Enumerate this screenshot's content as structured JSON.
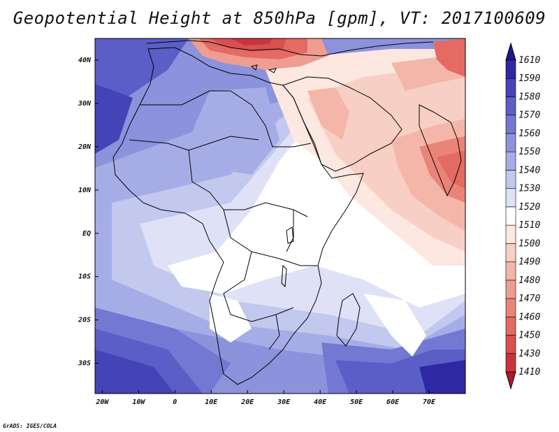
{
  "title": "Geopotential Height at 850hPa [gpm], VT: 2017100609",
  "credit": "GrADS: IGES/COLA",
  "axes": {
    "x_tick_labels": [
      "20W",
      "10W",
      "0",
      "10E",
      "20E",
      "30E",
      "40E",
      "50E",
      "60E",
      "70E"
    ],
    "x_tick_values": [
      -20,
      -10,
      0,
      10,
      20,
      30,
      40,
      50,
      60,
      70
    ],
    "y_tick_labels": [
      "40N",
      "30N",
      "20N",
      "10N",
      "EQ",
      "10S",
      "20S",
      "30S"
    ],
    "y_tick_values": [
      40,
      30,
      20,
      10,
      0,
      -10,
      -20,
      -30
    ],
    "lon_range": [
      -22,
      80
    ],
    "lat_range": [
      -37,
      45
    ]
  },
  "colorbar": {
    "levels": [
      "1410",
      "1430",
      "1450",
      "1460",
      "1470",
      "1480",
      "1490",
      "1500",
      "1510",
      "1520",
      "1530",
      "1540",
      "1550",
      "1560",
      "1570",
      "1580",
      "1590",
      "1610"
    ],
    "colors": [
      "#b2182b",
      "#c8343d",
      "#d9504f",
      "#e36b63",
      "#ea8478",
      "#ef9d90",
      "#f4b6a9",
      "#f8cfc4",
      "#fce8e1",
      "#ffffff",
      "#dfe2f6",
      "#c2c8ee",
      "#a6ade6",
      "#8c92dc",
      "#7378d2",
      "#5b5ec6",
      "#4443b7",
      "#2e28a3",
      "#1e1893"
    ]
  },
  "colors": {
    "land_outline": "#000000",
    "frame": "#000000"
  }
}
